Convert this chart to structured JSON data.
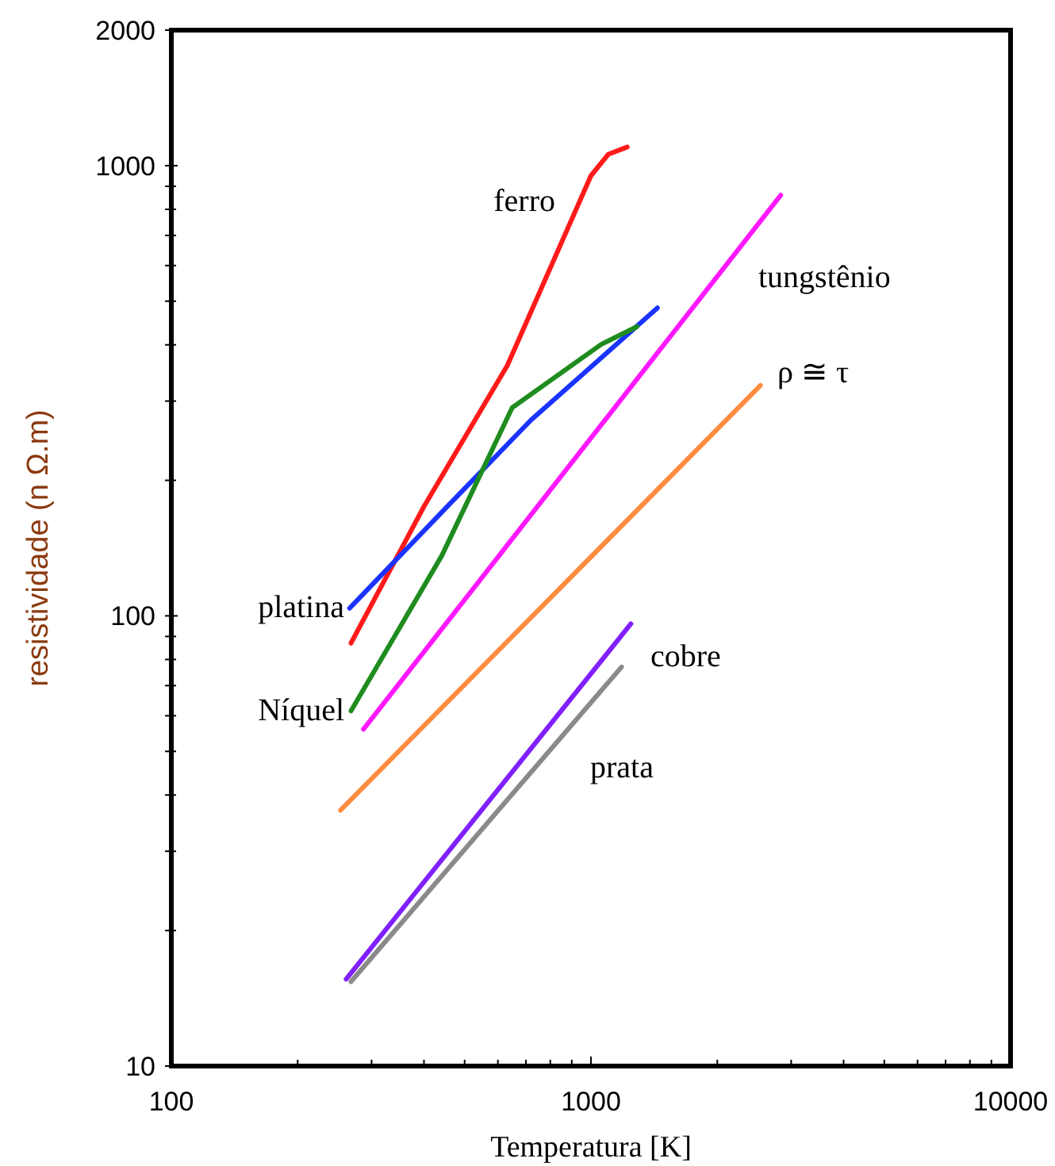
{
  "chart_data": {
    "type": "line",
    "xlabel": "Temperatura [K]",
    "ylabel": "resistividade (n Ω.m)",
    "log": "xy",
    "grid": false,
    "legend": false,
    "marker": "none",
    "line_style": "solid",
    "xlim": [
      100,
      10000
    ],
    "ylim": [
      10,
      2000
    ],
    "xticks": [
      100,
      {
        "value": 200,
        "label": null
      },
      {
        "value": 300,
        "label": null
      },
      {
        "value": 400,
        "label": null
      },
      {
        "value": 500,
        "label": null
      },
      {
        "value": 600,
        "label": null
      },
      {
        "value": 700,
        "label": null
      },
      {
        "value": 800,
        "label": null
      },
      {
        "value": 900,
        "label": null
      },
      1000,
      {
        "value": 2000,
        "label": null
      },
      {
        "value": 3000,
        "label": null
      },
      {
        "value": 4000,
        "label": null
      },
      {
        "value": 5000,
        "label": null
      },
      {
        "value": 6000,
        "label": null
      },
      {
        "value": 7000,
        "label": null
      },
      {
        "value": 8000,
        "label": null
      },
      {
        "value": 9000,
        "label": null
      },
      10000
    ],
    "yticks": [
      10,
      {
        "value": 20,
        "label": null
      },
      {
        "value": 30,
        "label": null
      },
      {
        "value": 40,
        "label": null
      },
      {
        "value": 50,
        "label": null
      },
      {
        "value": 60,
        "label": null
      },
      {
        "value": 70,
        "label": null
      },
      {
        "value": 80,
        "label": null
      },
      {
        "value": 90,
        "label": null
      },
      100,
      {
        "value": 200,
        "label": null
      },
      {
        "value": 300,
        "label": null
      },
      {
        "value": 400,
        "label": null
      },
      {
        "value": 500,
        "label": null
      },
      {
        "value": 600,
        "label": null
      },
      {
        "value": 700,
        "label": null
      },
      {
        "value": 800,
        "label": null
      },
      {
        "value": 900,
        "label": null
      },
      1000,
      2000
    ],
    "series": [
      {
        "name": "ferro",
        "color": "#ff1a1a",
        "x": [
          268,
          400,
          632,
          1000,
          1100,
          1220
        ],
        "values": [
          87,
          175,
          360,
          950,
          1060,
          1100
        ]
      },
      {
        "name": "tungstênio",
        "color": "#ff19ff",
        "x": [
          287,
          2833
        ],
        "values": [
          56,
          860
        ]
      },
      {
        "name": "ρ ≅ τ",
        "color": "#ff8c40",
        "x": [
          253,
          2535
        ],
        "values": [
          37,
          325
        ]
      },
      {
        "name": "platina",
        "color": "#1a33ff",
        "x": [
          266,
          452,
          719,
          1440
        ],
        "values": [
          104,
          174,
          272,
          483
        ]
      },
      {
        "name": "Níquel",
        "color": "#1e8c1e",
        "x": [
          268,
          441,
          649,
          1058,
          1288
        ],
        "values": [
          61.5,
          136,
          290,
          401,
          439
        ]
      },
      {
        "name": "prata",
        "color": "#8a8a8a",
        "x": [
          268,
          1183
        ],
        "values": [
          15.4,
          77
        ]
      },
      {
        "name": "cobre",
        "color": "#8020ff",
        "x": [
          261,
          1245
        ],
        "values": [
          15.6,
          96
        ]
      }
    ]
  }
}
